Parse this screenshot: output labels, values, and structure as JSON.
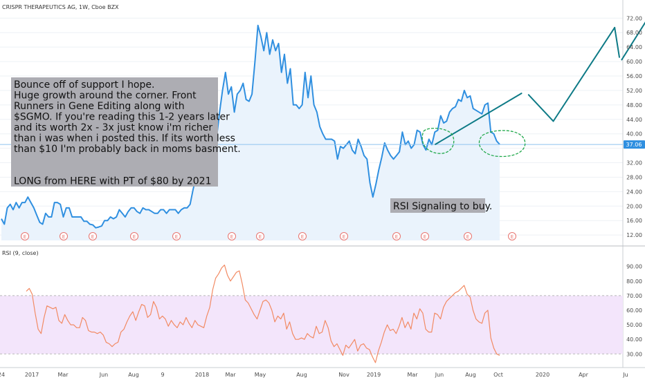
{
  "header": {
    "symbol_line": "CRISPR THERAPEUTICS AG, 1W, Cboe BZX",
    "rsi_label": "RSI (9, close)"
  },
  "colors": {
    "price_line": "#2f8fe0",
    "price_fill": "#eaf3fc",
    "projection": "#0d7a86",
    "rsi_line": "#f28a63",
    "rsi_band": "#f3e5fb",
    "circle": "#1fa84a",
    "note_bg": "#adadb3",
    "last_price_bg": "#2f8fe0",
    "earnings": "#e8746f",
    "grid": "#eef1f5"
  },
  "annotations": {
    "note_lines": [
      "Bounce off of support I hope.",
      "Huge growth around the corner. Front",
      "Runners in Gene Editing along with",
      "$SGMO. If you're reading this 1-2 years later",
      "and its worth 2x - 3x just know i'm richer",
      " than i was when i posted this. If its worth less",
      "than $10 I'm probably back in moms basment.",
      "",
      "",
      "LONG from HERE with PT of $80 by 2021"
    ],
    "rsi_note": "RSI Signaling to buy.",
    "last_price": "37.06",
    "earnings_marker": "E"
  },
  "chart_data": [
    {
      "type": "line",
      "title": "CRISPR THERAPEUTICS AG, 1W, Cboe BZX",
      "x_ticks": [
        "24",
        "2017",
        "Mar",
        "Jun",
        "Aug",
        "9",
        "2018",
        "Mar",
        "May",
        "Aug",
        "Nov",
        "2019",
        "Mar",
        "Jun",
        "Aug",
        "Oct",
        "2020",
        "Apr",
        "Ju"
      ],
      "y_ticks": [
        "12.00",
        "16.00",
        "20.00",
        "24.00",
        "28.00",
        "32.00",
        "36.00",
        "40.00",
        "44.00",
        "48.00",
        "52.00",
        "56.00",
        "60.00",
        "64.00",
        "68.00",
        "72.00"
      ],
      "ylim": [
        10.5,
        75.5
      ],
      "series": [
        {
          "values": [
            16.5,
            15,
            19.5,
            20.5,
            19,
            21,
            19.5,
            21,
            21,
            22.5,
            21,
            19.5,
            17.5,
            15.5,
            15,
            18,
            17,
            17,
            21,
            21,
            20.5,
            17,
            19.5,
            19.5,
            17,
            17,
            17,
            17,
            15.8,
            15.8,
            15,
            14.8,
            14,
            14.2,
            14.5,
            16,
            16,
            17,
            16.5,
            17,
            19,
            18,
            17,
            18.5,
            19.5,
            19.5,
            18.5,
            18,
            19.5,
            19,
            19,
            18.5,
            18,
            18,
            19,
            19,
            18,
            19,
            19,
            19,
            18,
            19,
            19.5,
            19.5,
            20.5,
            24.5,
            28,
            29.5,
            31,
            35,
            43,
            38,
            35,
            39,
            46,
            52,
            57,
            51,
            53,
            46,
            51,
            52,
            54,
            49.5,
            49,
            51,
            60,
            70,
            67,
            63,
            68,
            62,
            66,
            63,
            65,
            57,
            62,
            54,
            58,
            48,
            48,
            47,
            48,
            57,
            50,
            56,
            48,
            46,
            42,
            40,
            38.5,
            38.5,
            38.5,
            38,
            33,
            36.5,
            36,
            37,
            38,
            35.5,
            34.5,
            38.5,
            36.5,
            34,
            33,
            26.5,
            22.5,
            26,
            30,
            33.5,
            37.5,
            35.5,
            34,
            33,
            34,
            35,
            40.5,
            37,
            38,
            36,
            37,
            41,
            40.5,
            37,
            35.5,
            38.5,
            37,
            40.5,
            41,
            45,
            43,
            43.5,
            46,
            47,
            47.5,
            49.5,
            49,
            52,
            50,
            50.5,
            47,
            46.5,
            46,
            45.5,
            48,
            48.5,
            40.5,
            40,
            38,
            37.1
          ]
        },
        {
          "name": "projection",
          "segments": [
            [
              [
                36.8,
                37.1
              ],
              [
                44.1,
                51.2
              ]
            ],
            [
              [
                44.7,
                50.8
              ],
              [
                46.8,
                43.5
              ]
            ],
            [
              [
                46.8,
                43.5
              ],
              [
                52.0,
                69.4
              ]
            ],
            [
              [
                52.0,
                69.4
              ],
              [
                52.4,
                61.2
              ]
            ],
            [
              [
                52.6,
                60.5
              ],
              [
                55.6,
                76.0
              ]
            ]
          ]
        }
      ]
    },
    {
      "type": "line",
      "title": "RSI (9, close)",
      "y_ticks": [
        "30.00",
        "40.00",
        "50.00",
        "60.00",
        "70.00",
        "80.00",
        "90.00"
      ],
      "ylim": [
        23.5,
        96.5
      ],
      "band": [
        30,
        70
      ],
      "series": [
        {
          "values": [
            73,
            75,
            71,
            58,
            47,
            44,
            55,
            63,
            62,
            61,
            62,
            53,
            51,
            57,
            53,
            50,
            50,
            48,
            48,
            55,
            53,
            46,
            45,
            45,
            44,
            45,
            43,
            38,
            37,
            35,
            37,
            38,
            45,
            47,
            52,
            56,
            59,
            53,
            59,
            64,
            63,
            55,
            57,
            66,
            62,
            54,
            56,
            54,
            49,
            53,
            50,
            48,
            52,
            50,
            55,
            51,
            48,
            53,
            50,
            49,
            48,
            56,
            62,
            74,
            82,
            85,
            89,
            91,
            84,
            80,
            83,
            86,
            87,
            78,
            67,
            65,
            61,
            57,
            54,
            60,
            66,
            67,
            65,
            60,
            52,
            56,
            54,
            58,
            47,
            52,
            44,
            40,
            40,
            41,
            40,
            44,
            42,
            41,
            49,
            44,
            45,
            53,
            48,
            39,
            35,
            37,
            33,
            29,
            36,
            34,
            37,
            40,
            32,
            36,
            37,
            34,
            33,
            28,
            24,
            32,
            38,
            45,
            50,
            46,
            47,
            44,
            49,
            55,
            48,
            52,
            47,
            58,
            54,
            61,
            58,
            47,
            45,
            45,
            58,
            57,
            54,
            62,
            66,
            68,
            70,
            72,
            73,
            75,
            77,
            71,
            69,
            60,
            54,
            52,
            51,
            58,
            60,
            41,
            34,
            30,
            29
          ]
        }
      ]
    }
  ]
}
